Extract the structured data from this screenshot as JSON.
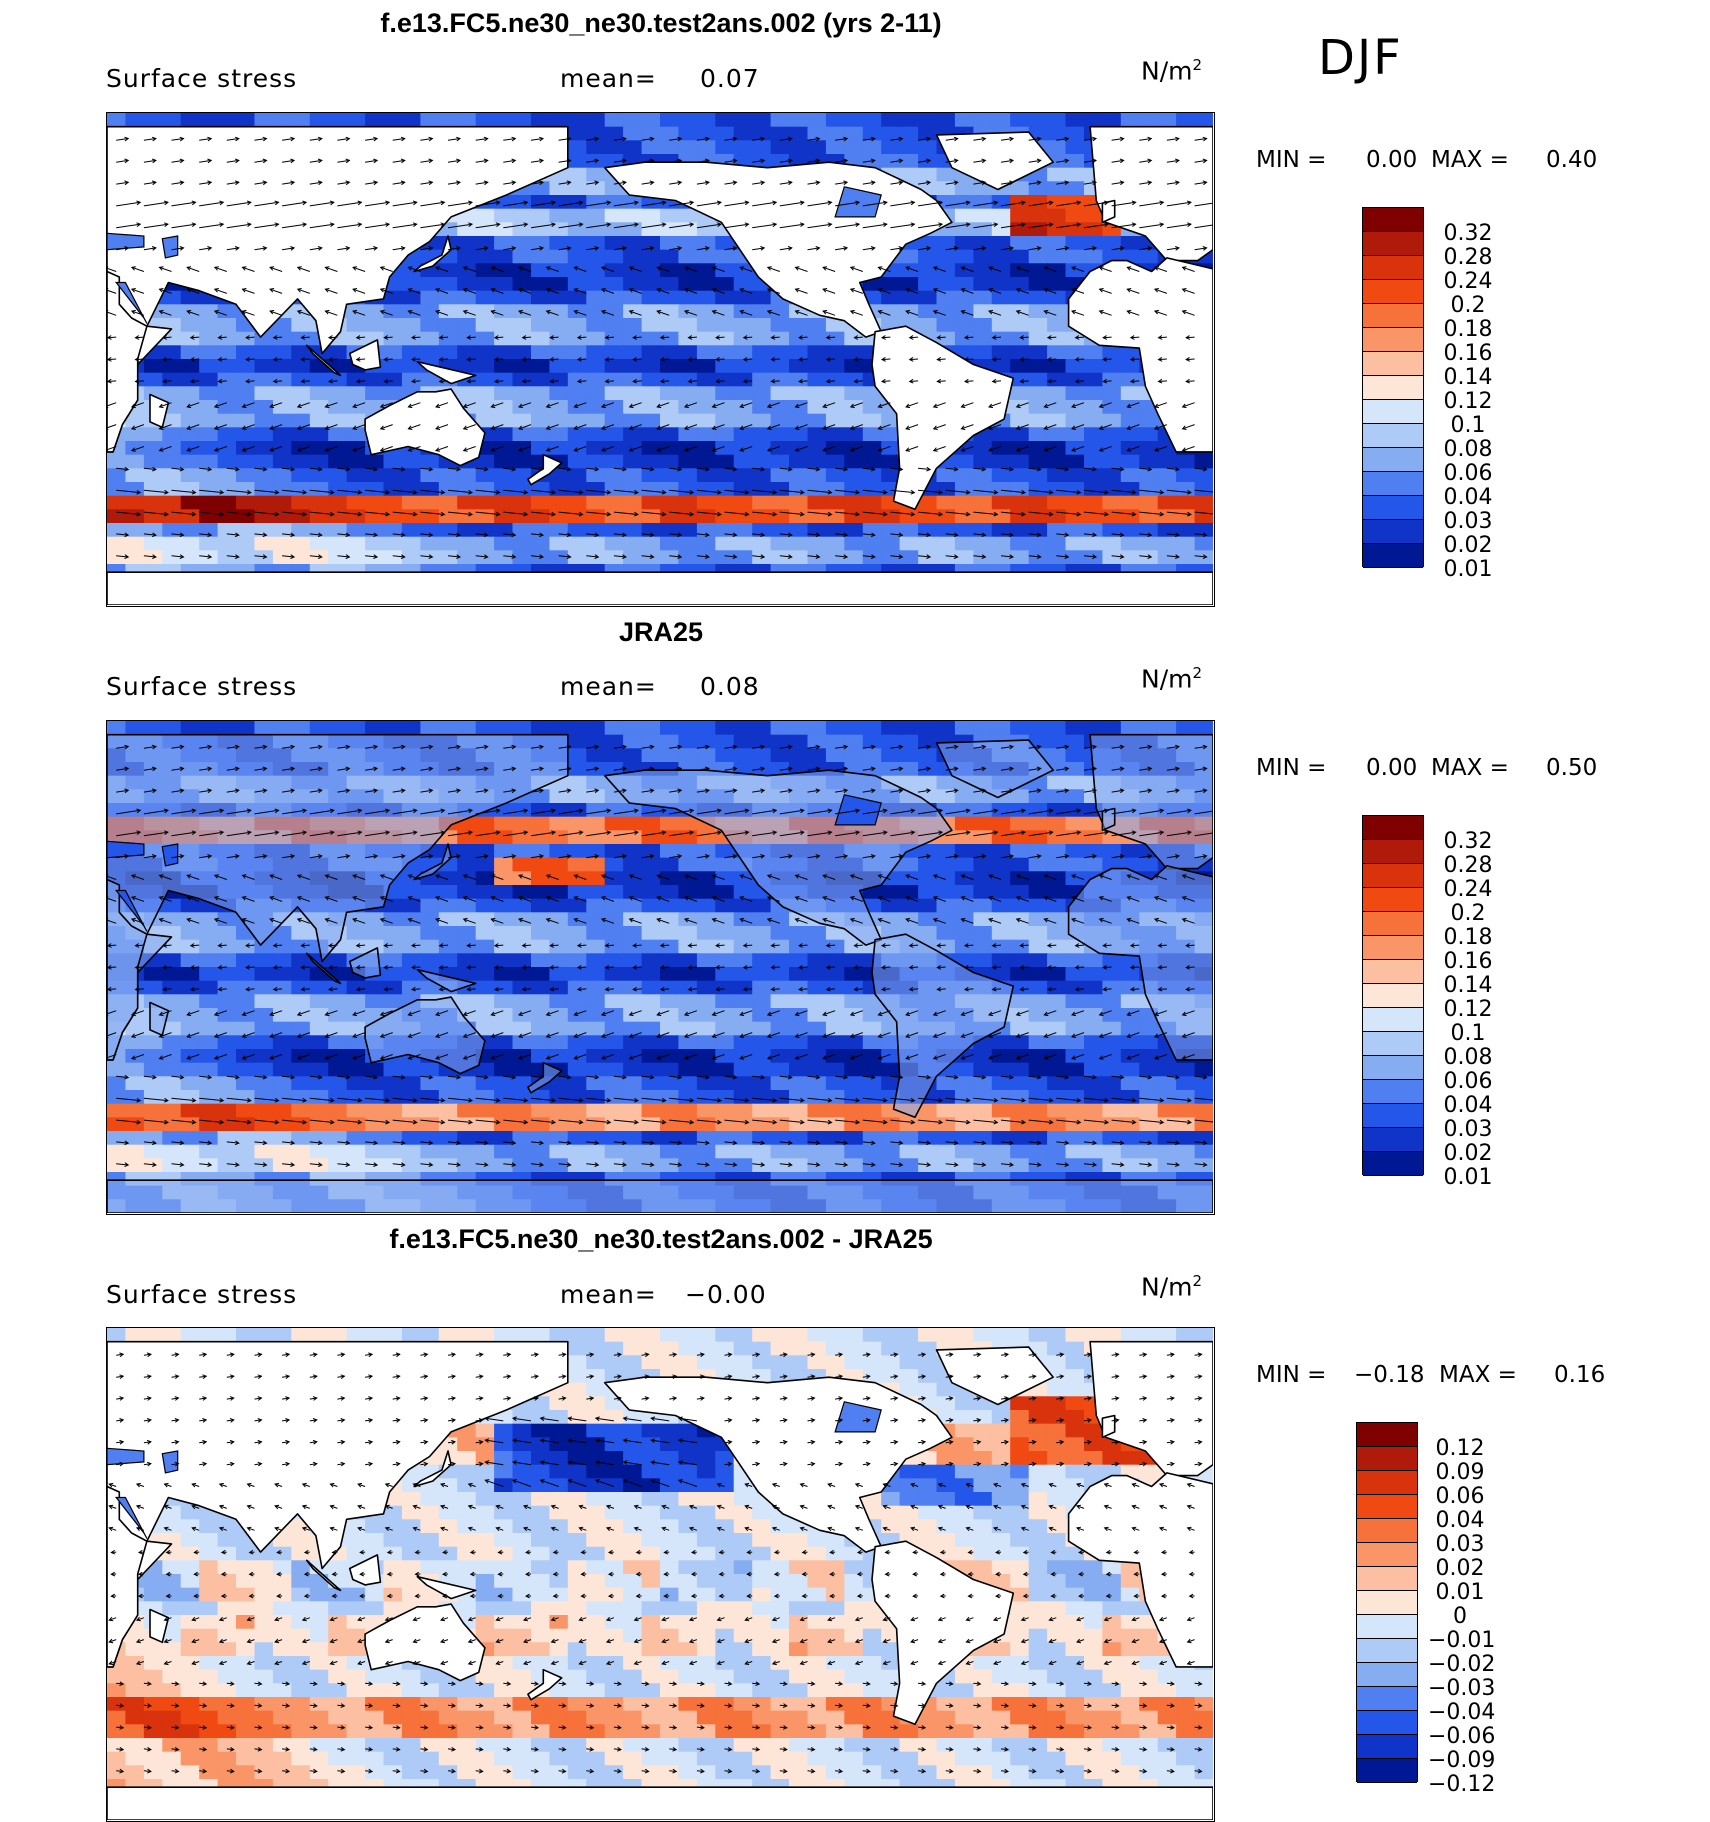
{
  "season": "DJF",
  "panels": [
    {
      "title": "f.e13.FC5.ne30_ne30.test2ans.002 (yrs 2-11)",
      "left_label": "Surface stress",
      "mean_label": "mean=",
      "mean_value": "0.07",
      "units_base": "N/m",
      "units_exp": "2",
      "min_label": "MIN =",
      "min_value": "0.00",
      "max_label": "MAX =",
      "max_value": "0.40",
      "colorbar_levels": [
        "0.32",
        "0.28",
        "0.24",
        "0.2",
        "0.18",
        "0.16",
        "0.14",
        "0.12",
        "0.1",
        "0.08",
        "0.06",
        "0.04",
        "0.03",
        "0.02",
        "0.01"
      ],
      "colorbar_colors": [
        "#7f0000",
        "#b01a0a",
        "#d8330d",
        "#f04a12",
        "#f7713b",
        "#fa9568",
        "#fcbfa2",
        "#fde6d8",
        "#d5e6fb",
        "#aecaf6",
        "#86acf2",
        "#4f7ff0",
        "#2456ea",
        "#1034c8",
        "#001894"
      ],
      "field": "model"
    },
    {
      "title": "JRA25",
      "left_label": "Surface stress",
      "mean_label": "mean=",
      "mean_value": "0.08",
      "units_base": "N/m",
      "units_exp": "2",
      "min_label": "MIN =",
      "min_value": "0.00",
      "max_label": "MAX =",
      "max_value": "0.50",
      "colorbar_levels": [
        "0.32",
        "0.28",
        "0.24",
        "0.2",
        "0.18",
        "0.16",
        "0.14",
        "0.12",
        "0.1",
        "0.08",
        "0.06",
        "0.04",
        "0.03",
        "0.02",
        "0.01"
      ],
      "colorbar_colors": [
        "#7f0000",
        "#b01a0a",
        "#d8330d",
        "#f04a12",
        "#f7713b",
        "#fa9568",
        "#fcbfa2",
        "#fde6d8",
        "#d5e6fb",
        "#aecaf6",
        "#86acf2",
        "#4f7ff0",
        "#2456ea",
        "#1034c8",
        "#001894"
      ],
      "field": "obs"
    },
    {
      "title": "f.e13.FC5.ne30_ne30.test2ans.002 - JRA25",
      "left_label": "Surface stress",
      "mean_label": "mean=",
      "mean_value": "−0.00",
      "units_base": "N/m",
      "units_exp": "2",
      "min_label": "MIN =",
      "min_value": "−0.18",
      "max_label": "MAX =",
      "max_value": "0.16",
      "colorbar_levels": [
        "0.12",
        "0.09",
        "0.06",
        "0.04",
        "0.03",
        "0.02",
        "0.01",
        "0",
        "−0.01",
        "−0.02",
        "−0.03",
        "−0.04",
        "−0.06",
        "−0.09",
        "−0.12"
      ],
      "colorbar_colors": [
        "#7f0000",
        "#b01a0a",
        "#d8330d",
        "#f04a12",
        "#f7713b",
        "#fa9568",
        "#fcbfa2",
        "#fde6d8",
        "#d5e6fb",
        "#aecaf6",
        "#86acf2",
        "#4f7ff0",
        "#2456ea",
        "#1034c8",
        "#001894"
      ],
      "field": "diff"
    }
  ]
}
